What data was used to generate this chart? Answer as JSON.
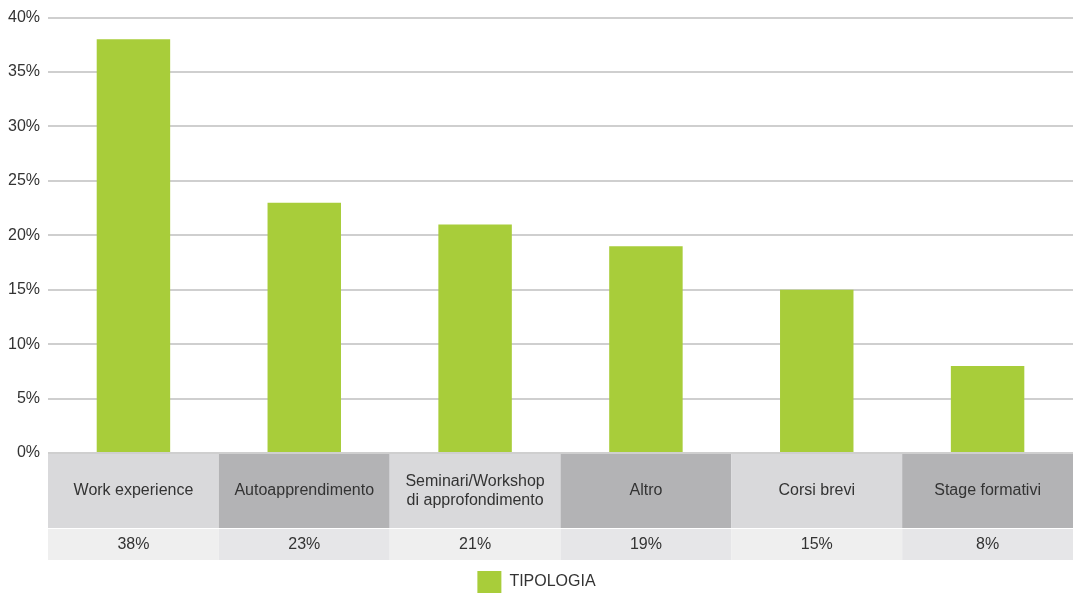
{
  "chart_data": {
    "type": "bar",
    "categories": [
      "Work experience",
      "Autoapprendimento",
      "Seminari/Workshop di approfondimento",
      "Altro",
      "Corsi brevi",
      "Stage formativi"
    ],
    "series": [
      {
        "name": "TIPOLOGIA",
        "color": "#a8cd3a",
        "values": [
          38,
          23,
          21,
          19,
          15,
          8
        ],
        "value_labels": [
          "38%",
          "23%",
          "21%",
          "19%",
          "15%",
          "8%"
        ]
      }
    ],
    "ylim": [
      0,
      40
    ],
    "yticks": [
      {
        "value": 0,
        "label": "0%"
      },
      {
        "value": 5,
        "label": "5%"
      },
      {
        "value": 10,
        "label": "10%"
      },
      {
        "value": 15,
        "label": "15%"
      },
      {
        "value": 20,
        "label": "20%"
      },
      {
        "value": 25,
        "label": "25%"
      },
      {
        "value": 30,
        "label": "30%"
      },
      {
        "value": 35,
        "label": "35%"
      },
      {
        "value": 40,
        "label": "40%"
      }
    ],
    "grid": "y",
    "legend": "bottom"
  }
}
